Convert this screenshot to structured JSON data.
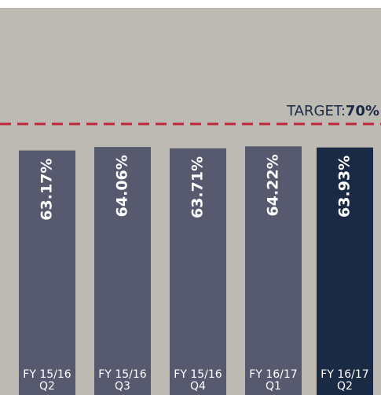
{
  "chart_data": {
    "type": "bar",
    "categories": [
      "FY 15/16\nQ2",
      "FY 15/16\nQ3",
      "FY 15/16\nQ4",
      "FY 16/17\nQ1",
      "FY 16/17\nQ2"
    ],
    "values": [
      63.17,
      64.06,
      63.71,
      64.22,
      63.93
    ],
    "value_labels": [
      "63.17%",
      "64.06%",
      "63.71%",
      "64.22%",
      "63.93%"
    ],
    "colors": [
      "#575a6e",
      "#575a6e",
      "#575a6e",
      "#575a6e",
      "#1b2a44"
    ],
    "ylim": [
      0,
      100
    ],
    "target": {
      "value": 70,
      "prefix": "TARGET:",
      "label": "70%",
      "color": "#c0253a"
    }
  }
}
